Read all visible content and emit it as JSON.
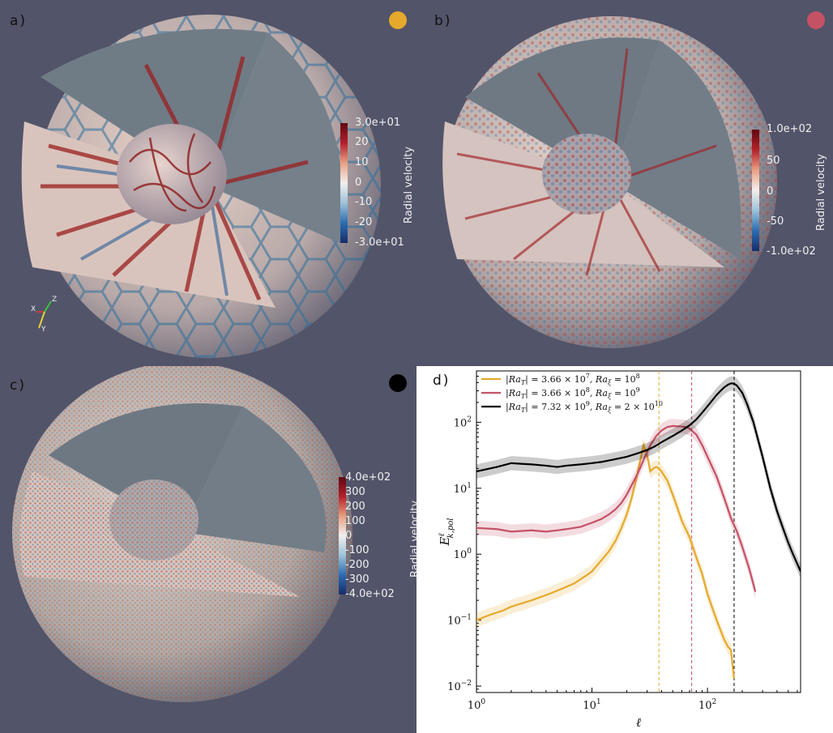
{
  "panels": [
    {
      "label": "a)",
      "dot_color": "#e5a92b",
      "colorbar": {
        "title": "Radial velocity",
        "ticks": [
          "3.0e+01",
          "20",
          "10",
          "0",
          "-10",
          "-20",
          "-3.0e+01"
        ]
      }
    },
    {
      "label": "b)",
      "dot_color": "#c55165",
      "colorbar": {
        "title": "Radial velocity",
        "ticks": [
          "1.0e+02",
          "50",
          "0",
          "-50",
          "-1.0e+02"
        ]
      }
    },
    {
      "label": "c)",
      "dot_color": "#000000",
      "colorbar": {
        "title": "Radial velocity",
        "ticks": [
          "4.0e+02",
          "300",
          "200",
          "100",
          "0",
          "-100",
          "-200",
          "-300",
          "-4.0e+02"
        ]
      }
    }
  ],
  "axes_triad": {
    "x": "X",
    "y": "Y",
    "z": "Z"
  },
  "chart_data": {
    "label": "d)",
    "type": "line",
    "xscale": "log",
    "yscale": "log",
    "xlim": [
      1,
      640
    ],
    "ylim": [
      0.008,
      600
    ],
    "xlabel": "ℓ",
    "ylabel_main": "E",
    "ylabel_sup": "ℓ",
    "ylabel_sub": "k,pol",
    "x_ticks": [
      {
        "value": 1,
        "base": "10",
        "exp": "0"
      },
      {
        "value": 10,
        "base": "10",
        "exp": "1"
      },
      {
        "value": 100,
        "base": "10",
        "exp": "2"
      }
    ],
    "y_ticks": [
      {
        "value": 0.01,
        "base": "10",
        "exp": "−2"
      },
      {
        "value": 0.1,
        "base": "10",
        "exp": "−1"
      },
      {
        "value": 1,
        "base": "10",
        "exp": "0"
      },
      {
        "value": 10,
        "base": "10",
        "exp": "1"
      },
      {
        "value": 100,
        "base": "10",
        "exp": "2"
      }
    ],
    "legend_position": "top-left",
    "series": [
      {
        "name": "|Ra_T| = 3.66 × 10^7, Ra_ξ = 10^8",
        "legend_parts": {
          "a": "|Ra",
          "b": "T",
          "c": "| = 3.66 × 10",
          "d": "7",
          "e": ", Ra",
          "f": "ξ",
          "g": " = 10",
          "h": "8"
        },
        "color": "#e5a92b",
        "peak_x": 38,
        "x": [
          1,
          1.3,
          1.7,
          2,
          3,
          4,
          5,
          6,
          7,
          8,
          9,
          10,
          12,
          14,
          16,
          18,
          20,
          22,
          24,
          26,
          28,
          30,
          32,
          34,
          36,
          38,
          40,
          45,
          50,
          55,
          60,
          70,
          80,
          90,
          100,
          120,
          140,
          150,
          160,
          165,
          170
        ],
        "y": [
          0.1,
          0.12,
          0.14,
          0.16,
          0.2,
          0.24,
          0.28,
          0.32,
          0.36,
          0.42,
          0.48,
          0.55,
          0.8,
          1.1,
          1.6,
          2.5,
          4,
          7,
          13,
          25,
          45,
          32,
          18,
          20,
          21,
          20,
          18,
          13,
          8,
          5,
          3.2,
          1.8,
          0.9,
          0.5,
          0.25,
          0.1,
          0.05,
          0.04,
          0.035,
          0.02,
          0.013
        ]
      },
      {
        "name": "|Ra_T| = 3.66 × 10^8, Ra_ξ = 10^9",
        "legend_parts": {
          "a": "|Ra",
          "b": "T",
          "c": "| = 3.66 × 10",
          "d": "8",
          "e": ", Ra",
          "f": "ξ",
          "g": " = 10",
          "h": "9"
        },
        "color": "#c55165",
        "peak_x": 73,
        "x": [
          1,
          1.5,
          2,
          3,
          4,
          5,
          6,
          8,
          10,
          12,
          14,
          16,
          18,
          20,
          22,
          25,
          28,
          32,
          36,
          40,
          45,
          50,
          55,
          60,
          65,
          70,
          80,
          90,
          100,
          120,
          140,
          160,
          180,
          200,
          230,
          260
        ],
        "y": [
          2.5,
          2.4,
          2.2,
          2.3,
          2.2,
          2.3,
          2.4,
          2.6,
          3,
          3.4,
          4,
          4.8,
          6,
          8,
          11,
          17,
          27,
          45,
          62,
          75,
          85,
          88,
          87,
          86,
          85,
          80,
          65,
          45,
          30,
          15,
          7,
          3.5,
          2.2,
          1.3,
          0.6,
          0.27
        ]
      },
      {
        "name": "|Ra_T| = 7.32 × 10^9, Ra_ξ = 2 × 10^10",
        "legend_parts": {
          "a": "|Ra",
          "b": "T",
          "c": "| = 7.32 × 10",
          "d": "9",
          "e": ", Ra",
          "f": "ξ",
          "g": " = 2 × 10",
          "h": "10"
        },
        "color": "#000000",
        "peak_x": 170,
        "x": [
          1,
          1.5,
          2,
          3,
          4,
          5,
          6,
          8,
          10,
          12,
          15,
          20,
          25,
          30,
          35,
          40,
          50,
          60,
          70,
          80,
          90,
          100,
          110,
          120,
          130,
          140,
          150,
          160,
          170,
          180,
          200,
          220,
          250,
          300,
          350,
          400,
          450,
          500,
          550,
          640
        ],
        "y": [
          18,
          21,
          24,
          23,
          22,
          21,
          22,
          23,
          24,
          25,
          27,
          30,
          34,
          38,
          43,
          50,
          62,
          75,
          90,
          110,
          140,
          175,
          215,
          260,
          300,
          340,
          370,
          390,
          385,
          360,
          280,
          190,
          100,
          30,
          10,
          4.5,
          2.5,
          1.5,
          1,
          0.55
        ]
      }
    ]
  }
}
